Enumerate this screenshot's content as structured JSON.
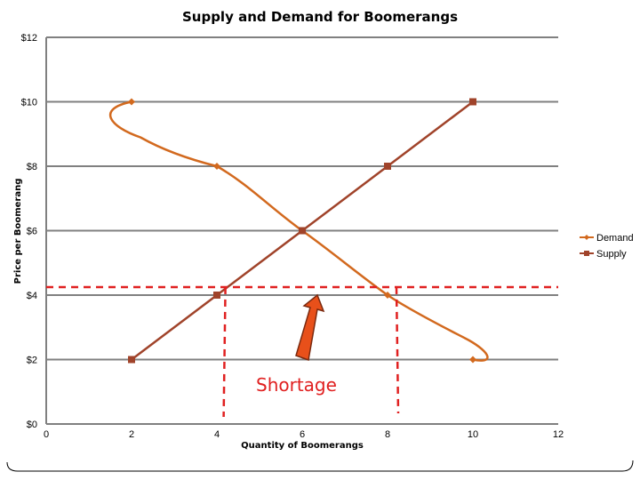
{
  "colors": {
    "demand": "#D2691E",
    "supply": "#A0432A",
    "grid": "#808080",
    "annotation": "#E02020",
    "arrow_fill": "#E8501A",
    "arrow_stroke": "#7A2A10"
  },
  "chart_data": {
    "type": "line",
    "title": "Supply and Demand for Boomerangs",
    "xlabel": "Quantity of Boomerangs",
    "ylabel": "Price per Boomerang",
    "xlim": [
      0,
      12
    ],
    "ylim": [
      0,
      12
    ],
    "x_ticks": [
      "0",
      "2",
      "4",
      "6",
      "8",
      "10",
      "12"
    ],
    "y_ticks": [
      "$0",
      "$2",
      "$4",
      "$6",
      "$8",
      "$10",
      "$12"
    ],
    "x_tick_values": [
      0,
      2,
      4,
      6,
      8,
      10,
      12
    ],
    "y_tick_values": [
      0,
      2,
      4,
      6,
      8,
      10,
      12
    ],
    "grid": "horizontal",
    "legend_position": "right",
    "series": [
      {
        "name": "Demand",
        "marker": "diamond",
        "smooth": true,
        "points": [
          [
            2,
            10
          ],
          [
            4,
            8
          ],
          [
            6,
            6
          ],
          [
            8,
            4
          ],
          [
            10,
            2
          ]
        ]
      },
      {
        "name": "Supply",
        "marker": "square",
        "smooth": true,
        "points": [
          [
            2,
            2
          ],
          [
            4,
            4
          ],
          [
            6,
            6
          ],
          [
            8,
            8
          ],
          [
            10,
            10
          ]
        ]
      }
    ],
    "annotations": {
      "shortage_label": "Shortage",
      "price_line_y": 4.25,
      "quantity_supplied_x": 4.2,
      "quantity_demanded_x": 8.25
    }
  }
}
